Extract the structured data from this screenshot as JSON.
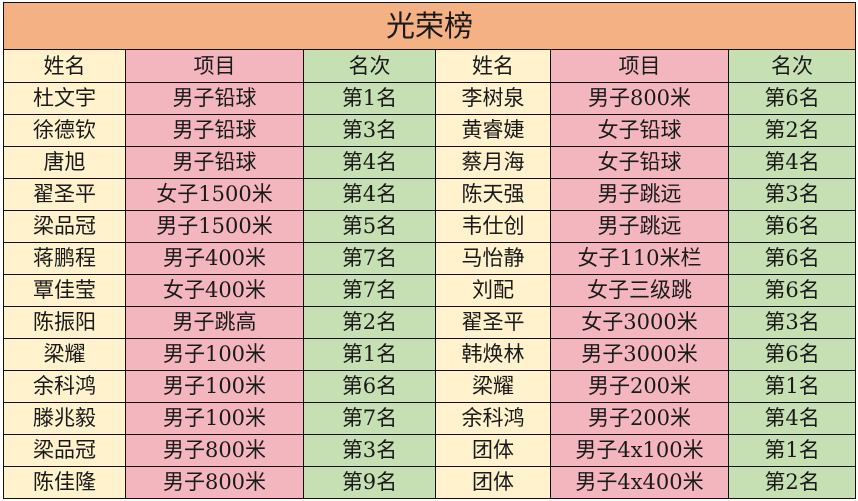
{
  "title": "光荣榜",
  "headers": [
    "姓名",
    "项目",
    "名次",
    "姓名",
    "项目",
    "名次"
  ],
  "colors": {
    "title": "#F4B183",
    "name": "#FFF2CC",
    "event": "#F4B6BE",
    "rank": "#C6E0B4"
  },
  "rows": [
    [
      "杜文宇",
      "男子铅球",
      "第1名",
      "李树泉",
      "男子800米",
      "第6名"
    ],
    [
      "徐德钦",
      "男子铅球",
      "第3名",
      "黄睿婕",
      "女子铅球",
      "第2名"
    ],
    [
      "唐旭",
      "男子铅球",
      "第4名",
      "蔡月海",
      "女子铅球",
      "第4名"
    ],
    [
      "翟圣平",
      "女子1500米",
      "第4名",
      "陈天强",
      "男子跳远",
      "第3名"
    ],
    [
      "梁品冠",
      "男子1500米",
      "第5名",
      "韦仕创",
      "男子跳远",
      "第6名"
    ],
    [
      "蒋鹏程",
      "男子400米",
      "第7名",
      "马怡静",
      "女子110米栏",
      "第6名"
    ],
    [
      "覃佳莹",
      "女子400米",
      "第7名",
      "刘配",
      "女子三级跳",
      "第6名"
    ],
    [
      "陈振阳",
      "男子跳高",
      "第2名",
      "翟圣平",
      "女子3000米",
      "第3名"
    ],
    [
      "梁耀",
      "男子100米",
      "第1名",
      "韩焕林",
      "男子3000米",
      "第6名"
    ],
    [
      "余科鸿",
      "男子100米",
      "第6名",
      "梁耀",
      "男子200米",
      "第1名"
    ],
    [
      "滕兆毅",
      "男子100米",
      "第7名",
      "余科鸿",
      "男子200米",
      "第4名"
    ],
    [
      "梁品冠",
      "男子800米",
      "第3名",
      "团体",
      "男子4x100米",
      "第1名"
    ],
    [
      "陈佳隆",
      "男子800米",
      "第9名",
      "团体",
      "男子4x400米",
      "第2名"
    ]
  ]
}
